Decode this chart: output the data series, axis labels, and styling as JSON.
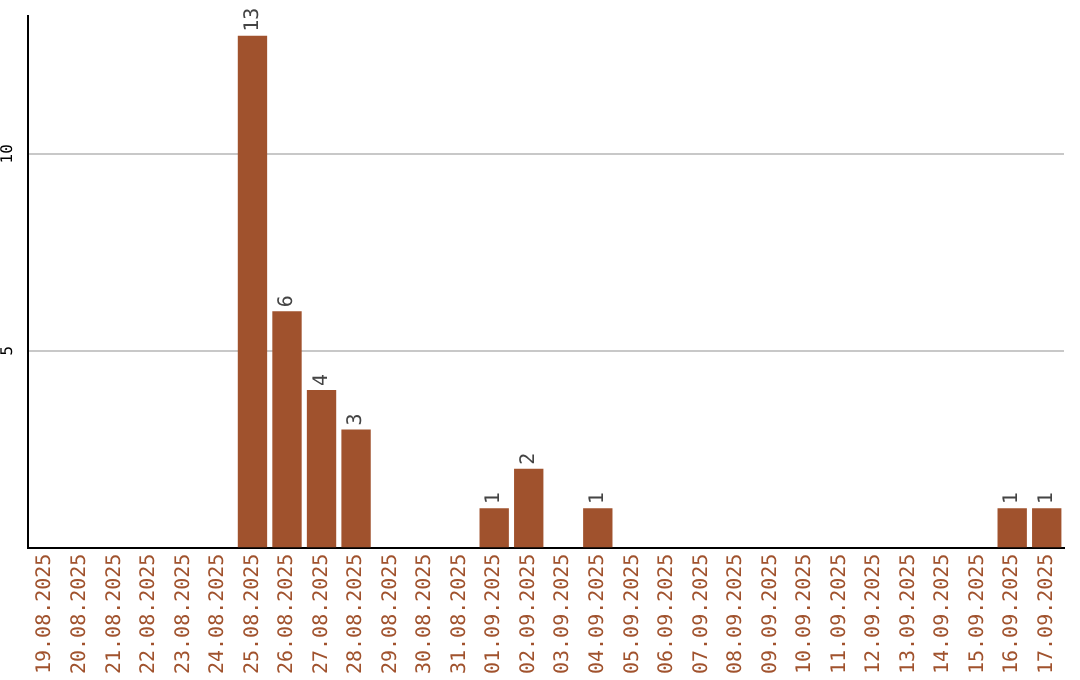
{
  "chart_data": {
    "type": "bar",
    "categories": [
      "19.08.2025",
      "20.08.2025",
      "21.08.2025",
      "22.08.2025",
      "23.08.2025",
      "24.08.2025",
      "25.08.2025",
      "26.08.2025",
      "27.08.2025",
      "28.08.2025",
      "29.08.2025",
      "30.08.2025",
      "31.08.2025",
      "01.09.2025",
      "02.09.2025",
      "03.09.2025",
      "04.09.2025",
      "05.09.2025",
      "06.09.2025",
      "07.09.2025",
      "08.09.2025",
      "09.09.2025",
      "10.09.2025",
      "11.09.2025",
      "12.09.2025",
      "13.09.2025",
      "14.09.2025",
      "15.09.2025",
      "16.09.2025",
      "17.09.2025"
    ],
    "values": [
      0,
      0,
      0,
      0,
      0,
      0,
      13,
      6,
      4,
      3,
      0,
      0,
      0,
      1,
      2,
      0,
      1,
      0,
      0,
      0,
      0,
      0,
      0,
      0,
      0,
      0,
      0,
      0,
      1,
      1
    ],
    "value_labels": [
      null,
      null,
      null,
      null,
      null,
      null,
      "13",
      "6",
      "4",
      "3",
      null,
      null,
      null,
      "1",
      "2",
      null,
      "1",
      null,
      null,
      null,
      null,
      null,
      null,
      null,
      null,
      null,
      null,
      null,
      "1",
      "1"
    ],
    "color": "#a0522d",
    "ylim": [
      0,
      13.5
    ],
    "yticks": [
      5,
      10
    ],
    "grid": "y",
    "legend": false
  }
}
